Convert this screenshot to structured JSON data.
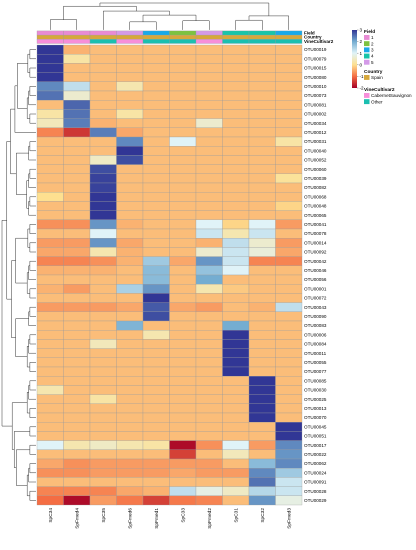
{
  "chart_data": {
    "type": "heatmap",
    "columns": [
      "SpC34",
      "SpFmed4",
      "SpC35",
      "SpFmed6",
      "SpFmed1",
      "SpC33",
      "SpFmed2",
      "SpC31",
      "SpC32",
      "SpFmed3"
    ],
    "rows": [
      "OTU00019",
      "OTU00079",
      "OTU00015",
      "OTU00080",
      "OTU00010",
      "OTU00073",
      "OTU00081",
      "OTU00002",
      "OTU00034",
      "OTU00012",
      "OTU00031",
      "OTU00040",
      "OTU00052",
      "OTU00060",
      "OTU00039",
      "OTU00082",
      "OTU00068",
      "OTU00048",
      "OTU00065",
      "OTU00041",
      "OTU00078",
      "OTU00014",
      "OTU00092",
      "OTU00042",
      "OTU00046",
      "OTU00056",
      "OTU00001",
      "OTU00072",
      "OTU00043",
      "OTU00090",
      "OTU00083",
      "OTU00006",
      "OTU00084",
      "OTU00011",
      "OTU00055",
      "OTU00077",
      "OTU00085",
      "OTU00030",
      "OTU00025",
      "OTU00013",
      "OTU00070",
      "OTU00045",
      "OTU00051",
      "OTU00017",
      "OTU00022",
      "OTU00062",
      "OTU00024",
      "OTU00091",
      "OTU00028",
      "OTU00029"
    ],
    "values": [
      [
        3.0,
        -0.4,
        -0.3,
        -0.3,
        -0.3,
        -0.3,
        -0.3,
        -0.3,
        -0.3,
        -0.3
      ],
      [
        3.0,
        0.2,
        -0.3,
        -0.3,
        -0.3,
        -0.3,
        -0.3,
        -0.3,
        -0.3,
        -0.3
      ],
      [
        3.0,
        -0.3,
        -0.3,
        -0.3,
        -0.3,
        -0.3,
        -0.3,
        -0.3,
        -0.3,
        -0.3
      ],
      [
        3.0,
        -0.3,
        -0.3,
        -0.3,
        -0.3,
        -0.3,
        -0.3,
        -0.3,
        -0.3,
        -0.3
      ],
      [
        2.3,
        1.3,
        -0.3,
        0.3,
        -0.3,
        -0.3,
        -0.3,
        -0.3,
        -0.3,
        -0.3
      ],
      [
        2.5,
        0.6,
        -0.3,
        -0.3,
        -0.3,
        -0.3,
        -0.3,
        -0.3,
        -0.3,
        -0.3
      ],
      [
        -0.3,
        2.6,
        -0.3,
        -0.3,
        -0.3,
        -0.3,
        -0.3,
        -0.3,
        -0.3,
        -0.3
      ],
      [
        0.2,
        2.5,
        -0.3,
        0.2,
        -0.3,
        -0.3,
        -0.3,
        -0.3,
        -0.3,
        -0.3
      ],
      [
        0.4,
        2.4,
        -0.4,
        -0.3,
        -0.3,
        -0.3,
        0.6,
        -0.3,
        -0.3,
        -0.3
      ],
      [
        -0.8,
        -1.5,
        2.4,
        -0.5,
        -0.3,
        -0.3,
        -0.3,
        -0.3,
        -0.3,
        -0.3
      ],
      [
        -0.3,
        -0.3,
        -0.3,
        2.3,
        -0.3,
        1.0,
        -0.3,
        -0.3,
        -0.3,
        0.2
      ],
      [
        -0.3,
        -0.3,
        -0.3,
        3.0,
        -0.3,
        -0.3,
        -0.3,
        -0.3,
        -0.3,
        -0.3
      ],
      [
        -0.3,
        -0.3,
        0.5,
        2.8,
        -0.3,
        -0.3,
        -0.3,
        -0.3,
        -0.3,
        -0.3
      ],
      [
        -0.3,
        -0.3,
        2.8,
        -0.3,
        -0.3,
        -0.3,
        -0.3,
        -0.3,
        -0.3,
        -0.3
      ],
      [
        -0.3,
        -0.3,
        2.9,
        -0.3,
        -0.3,
        -0.3,
        -0.3,
        -0.3,
        -0.3,
        0.1
      ],
      [
        -0.3,
        -0.3,
        2.9,
        -0.3,
        -0.3,
        -0.3,
        -0.3,
        -0.3,
        -0.3,
        -0.3
      ],
      [
        0.0,
        -0.3,
        3.0,
        -0.3,
        -0.3,
        -0.3,
        -0.3,
        -0.3,
        -0.3,
        -0.3
      ],
      [
        -0.3,
        -0.3,
        3.0,
        -0.3,
        -0.3,
        -0.3,
        -0.3,
        -0.3,
        -0.3,
        -0.1
      ],
      [
        -0.3,
        -0.3,
        3.0,
        -0.3,
        -0.3,
        -0.3,
        -0.3,
        -0.3,
        -0.3,
        -0.3
      ],
      [
        -0.7,
        -0.7,
        2.2,
        -0.4,
        -0.3,
        -0.3,
        1.0,
        -0.1,
        1.0,
        -0.6
      ],
      [
        -0.3,
        -0.3,
        1.0,
        -0.3,
        -0.3,
        -0.3,
        1.2,
        0.3,
        1.2,
        -0.3
      ],
      [
        -0.6,
        -0.6,
        2.2,
        -0.5,
        -0.3,
        -0.3,
        -0.4,
        1.3,
        0.6,
        -0.6
      ],
      [
        -0.5,
        -0.5,
        0.3,
        -0.4,
        -0.3,
        -0.3,
        0.6,
        1.2,
        0.7,
        -0.5
      ],
      [
        -0.8,
        -0.8,
        -0.7,
        -0.4,
        1.6,
        -0.5,
        2.2,
        1.2,
        -0.8,
        -0.8
      ],
      [
        -0.4,
        -0.4,
        -0.4,
        -0.3,
        1.8,
        -0.3,
        1.7,
        1.0,
        -0.3,
        -0.3
      ],
      [
        -0.3,
        -0.3,
        -0.3,
        -0.3,
        1.8,
        -0.3,
        2.0,
        -0.3,
        -0.3,
        -0.3
      ],
      [
        -0.4,
        -0.6,
        -0.3,
        1.5,
        2.2,
        -0.3,
        0.3,
        -0.2,
        -0.3,
        -0.3
      ],
      [
        -0.3,
        -0.3,
        -0.3,
        -0.3,
        3.0,
        -0.3,
        -0.3,
        -0.3,
        -0.3,
        -0.3
      ],
      [
        -0.6,
        -0.6,
        -0.6,
        -0.5,
        2.7,
        -0.5,
        -0.6,
        -0.3,
        -0.4,
        1.3
      ],
      [
        -0.3,
        -0.3,
        -0.3,
        -0.3,
        2.8,
        -0.3,
        -0.3,
        -0.3,
        -0.3,
        -0.3
      ],
      [
        -0.3,
        -0.3,
        -0.3,
        1.9,
        -0.3,
        -0.3,
        -0.3,
        2.0,
        -0.3,
        -0.3
      ],
      [
        -0.3,
        -0.3,
        -0.3,
        -0.3,
        0.3,
        -0.3,
        -0.3,
        3.0,
        -0.3,
        -0.3
      ],
      [
        -0.3,
        -0.3,
        0.4,
        -0.3,
        -0.3,
        -0.3,
        -0.3,
        3.0,
        -0.3,
        -0.3
      ],
      [
        -0.3,
        -0.3,
        -0.3,
        -0.3,
        -0.3,
        -0.3,
        -0.3,
        3.0,
        -0.3,
        -0.3
      ],
      [
        -0.3,
        -0.3,
        -0.3,
        -0.3,
        -0.3,
        -0.3,
        -0.3,
        3.0,
        -0.3,
        -0.3
      ],
      [
        -0.3,
        -0.3,
        -0.3,
        -0.3,
        -0.3,
        -0.3,
        -0.3,
        3.0,
        -0.3,
        -0.3
      ],
      [
        -0.3,
        -0.3,
        -0.3,
        -0.3,
        -0.3,
        -0.3,
        -0.3,
        -0.3,
        3.0,
        -0.3
      ],
      [
        0.3,
        -0.3,
        -0.3,
        -0.3,
        -0.3,
        -0.3,
        -0.3,
        -0.3,
        3.0,
        -0.3
      ],
      [
        -0.3,
        -0.3,
        0.2,
        -0.3,
        -0.3,
        -0.3,
        -0.3,
        -0.3,
        3.0,
        -0.3
      ],
      [
        -0.3,
        -0.3,
        -0.3,
        -0.3,
        -0.3,
        -0.3,
        -0.3,
        -0.3,
        3.0,
        -0.3
      ],
      [
        -0.3,
        -0.3,
        -0.3,
        -0.3,
        -0.3,
        -0.3,
        -0.3,
        -0.3,
        3.0,
        -0.3
      ],
      [
        -0.3,
        -0.3,
        -0.3,
        -0.3,
        -0.3,
        -0.3,
        -0.3,
        -0.3,
        -0.3,
        3.0
      ],
      [
        -0.3,
        -0.3,
        -0.3,
        -0.3,
        -0.3,
        -0.3,
        -0.3,
        -0.3,
        -0.3,
        3.0
      ],
      [
        1.0,
        0.3,
        0.5,
        0.3,
        0.2,
        -1.9,
        -0.7,
        1.0,
        -0.6,
        2.3
      ],
      [
        -0.3,
        -0.3,
        -0.3,
        -0.3,
        -0.3,
        -1.4,
        -0.3,
        0.4,
        -0.3,
        2.2
      ],
      [
        -0.5,
        -0.7,
        -0.6,
        -0.6,
        -0.6,
        -0.6,
        -0.6,
        -0.3,
        1.8,
        2.3
      ],
      [
        -0.7,
        -0.7,
        -0.6,
        -0.6,
        -0.6,
        -0.5,
        -0.6,
        -0.6,
        2.3,
        1.6
      ],
      [
        -0.3,
        -0.3,
        -0.3,
        -0.3,
        -0.3,
        -0.3,
        -0.3,
        -0.3,
        2.5,
        1.2
      ],
      [
        -0.8,
        -0.8,
        -0.8,
        -0.5,
        -0.4,
        1.3,
        0.8,
        0.5,
        1.4,
        1.2
      ],
      [
        -1.0,
        -1.9,
        -0.6,
        -0.9,
        -1.4,
        -0.9,
        -0.8,
        -0.3,
        2.2,
        0.8
      ]
    ],
    "color_range": [
      -2,
      3
    ],
    "colorbar_ticks": [
      3,
      2,
      1,
      0,
      -1,
      -2
    ],
    "colorbar_colors": [
      "#313695",
      "#74add1",
      "#e0f3f8",
      "#fee090",
      "#f46d43",
      "#a50026"
    ],
    "annotations": {
      "Field": [
        "1",
        "1",
        "1",
        "5",
        "3",
        "2",
        "5",
        "4",
        "4",
        "3"
      ],
      "Country": [
        "Spain",
        "Spain",
        "Spain",
        "Spain",
        "Spain",
        "Spain",
        "Spain",
        "Spain",
        "Spain",
        "Spain"
      ],
      "VineCultivar2": [
        "CabernetSauvignon",
        "CabernetSauvignon",
        "Other",
        "CabernetSauvignon",
        "Other",
        "Other",
        "CabernetSauvignon",
        "Other",
        "Other",
        "Other"
      ]
    },
    "annotation_rows": [
      "Field",
      "Country",
      "VineCultivar2"
    ],
    "legend": {
      "Field": {
        "title": "Field",
        "items": [
          {
            "label": "1",
            "color": "#e88bd4"
          },
          {
            "label": "2",
            "color": "#7cc241"
          },
          {
            "label": "3",
            "color": "#19a9e8"
          },
          {
            "label": "4",
            "color": "#19c4a8"
          },
          {
            "label": "5",
            "color": "#d49ae8"
          }
        ]
      },
      "Country": {
        "title": "Country",
        "items": [
          {
            "label": "Spain",
            "color": "#d6a83c"
          }
        ]
      },
      "VineCultivar2": {
        "title": "VineCultivar2",
        "items": [
          {
            "label": "CabernetSauvignon",
            "color": "#f78ed9"
          },
          {
            "label": "Other",
            "color": "#1bbfb0"
          }
        ]
      }
    },
    "field_colors": {
      "1": "#e88bd4",
      "2": "#7cc241",
      "3": "#19a9e8",
      "4": "#19c4a8",
      "5": "#d49ae8"
    },
    "country_colors": {
      "Spain": "#d6a83c"
    },
    "cultivar_colors": {
      "CabernetSauvignon": "#f78ed9",
      "Other": "#1bbfb0"
    },
    "grid": true
  }
}
